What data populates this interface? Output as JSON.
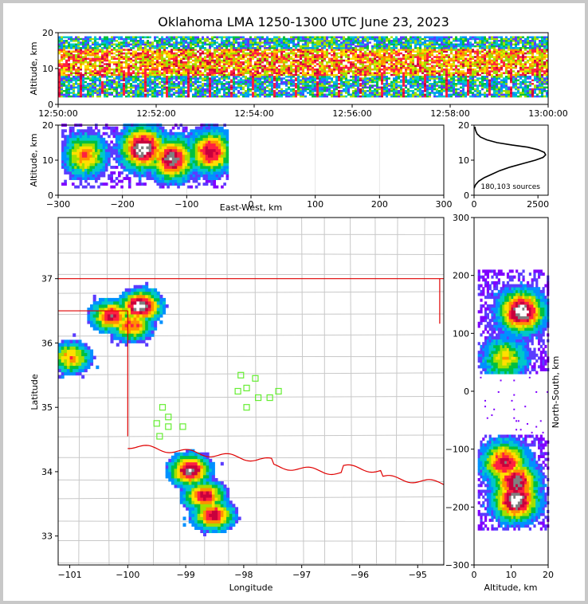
{
  "title": "Oklahoma LMA 1250-1300 UTC June 23, 2023",
  "colors": {
    "density_scale": [
      "#8000ff",
      "#5a3cff",
      "#0090ff",
      "#00c8c8",
      "#00c040",
      "#a0e000",
      "#ffe000",
      "#ff9000",
      "#ff2040",
      "#c8003c",
      "#808080",
      "#ffffff"
    ],
    "state_border": "#e00000",
    "county_lines": "#c8c8c8",
    "network_station": "#66ee33",
    "profile_line": "#000000"
  },
  "chart_data": [
    {
      "id": "time-height",
      "type": "heatmap",
      "title": "Oklahoma LMA 1250-1300 UTC June 23, 2023",
      "xlabel": "",
      "ylabel": "Altitude, km",
      "x_ticks": [
        "12:50:00",
        "12:52:00",
        "12:54:00",
        "12:56:00",
        "12:58:00",
        "13:00:00"
      ],
      "y_ticks": [
        "0",
        "10",
        "20"
      ],
      "ylim": [
        0,
        20
      ],
      "altitude_band_km": [
        2,
        19
      ],
      "core_band_km": [
        8,
        15
      ]
    },
    {
      "id": "ew-height",
      "type": "heatmap",
      "xlabel": "East-West, km",
      "ylabel": "Altitude, km",
      "x_ticks": [
        "−300",
        "−200",
        "−100",
        "0",
        "100",
        "200",
        "300"
      ],
      "y_ticks": [
        "0",
        "10",
        "20"
      ],
      "xlim": [
        -300,
        300
      ],
      "ylim": [
        0,
        20
      ],
      "grid": true,
      "cells": [
        {
          "x": -170,
          "z": 13,
          "level": 11
        },
        {
          "x": -125,
          "z": 10,
          "level": 10
        },
        {
          "x": -65,
          "z": 12,
          "level": 9
        },
        {
          "x": -260,
          "z": 11,
          "level": 7
        }
      ]
    },
    {
      "id": "altitude-histogram",
      "type": "line",
      "annotation": "180,103 sources",
      "x_ticks": [
        "0",
        "2500"
      ],
      "y_ticks": [
        "0",
        "10",
        "20"
      ],
      "xlim": [
        0,
        2900
      ],
      "ylim": [
        0,
        20
      ],
      "x": [
        0,
        60,
        180,
        400,
        700,
        1000,
        1400,
        1900,
        2400,
        2700,
        2800,
        2750,
        2500,
        2100,
        1500,
        900,
        500,
        250,
        120,
        60,
        30
      ],
      "y": [
        2,
        3,
        4,
        5,
        6,
        7,
        8,
        9,
        10,
        10.8,
        11.5,
        12.2,
        13,
        13.7,
        14.3,
        15,
        15.8,
        16.6,
        17.5,
        18.5,
        19.5
      ]
    },
    {
      "id": "plan-view",
      "type": "heatmap",
      "xlabel": "Longitude",
      "ylabel": "Latitude",
      "x_ticks": [
        "−101",
        "−100",
        "−99",
        "−98",
        "−97",
        "−96",
        "−95"
      ],
      "y_ticks": [
        "33",
        "34",
        "35",
        "36",
        "37"
      ],
      "xlim": [
        -101.2,
        -94.55
      ],
      "ylim": [
        32.55,
        37.95
      ],
      "storm_cells": [
        {
          "lon": -99.8,
          "lat": 36.55,
          "level": 11
        },
        {
          "lon": -100.3,
          "lat": 36.4,
          "level": 9
        },
        {
          "lon": -99.95,
          "lat": 36.25,
          "level": 8
        },
        {
          "lon": -101.0,
          "lat": 35.75,
          "level": 7
        },
        {
          "lon": -98.95,
          "lat": 34.0,
          "level": 10
        },
        {
          "lon": -98.7,
          "lat": 33.6,
          "level": 9
        },
        {
          "lon": -98.55,
          "lat": 33.3,
          "level": 9
        }
      ],
      "stations": [
        {
          "lon": -98.05,
          "lat": 35.5
        },
        {
          "lon": -97.8,
          "lat": 35.45
        },
        {
          "lon": -97.95,
          "lat": 35.3
        },
        {
          "lon": -98.1,
          "lat": 35.25
        },
        {
          "lon": -97.75,
          "lat": 35.15
        },
        {
          "lon": -97.55,
          "lat": 35.15
        },
        {
          "lon": -97.4,
          "lat": 35.25
        },
        {
          "lon": -97.95,
          "lat": 35.0
        },
        {
          "lon": -99.4,
          "lat": 35.0
        },
        {
          "lon": -99.3,
          "lat": 34.85
        },
        {
          "lon": -99.5,
          "lat": 34.75
        },
        {
          "lon": -99.3,
          "lat": 34.7
        },
        {
          "lon": -99.05,
          "lat": 34.7
        },
        {
          "lon": -99.45,
          "lat": 34.55
        }
      ]
    },
    {
      "id": "ns-altitude",
      "type": "heatmap",
      "xlabel": "Altitude, km",
      "ylabel": "North-South, km",
      "x_ticks": [
        "0",
        "10",
        "20"
      ],
      "y_ticks": [
        "300",
        "200",
        "100",
        "0",
        "−100",
        "−200",
        "−300"
      ],
      "xlim": [
        0,
        20
      ],
      "ylim": [
        -300,
        300
      ],
      "cells": [
        {
          "z": 12.5,
          "y": 135,
          "level": 11
        },
        {
          "z": 8,
          "y": 55,
          "level": 6
        },
        {
          "z": 11,
          "y": -160,
          "level": 10
        },
        {
          "z": 11,
          "y": -190,
          "level": 11
        },
        {
          "z": 8,
          "y": -125,
          "level": 9
        }
      ]
    }
  ]
}
